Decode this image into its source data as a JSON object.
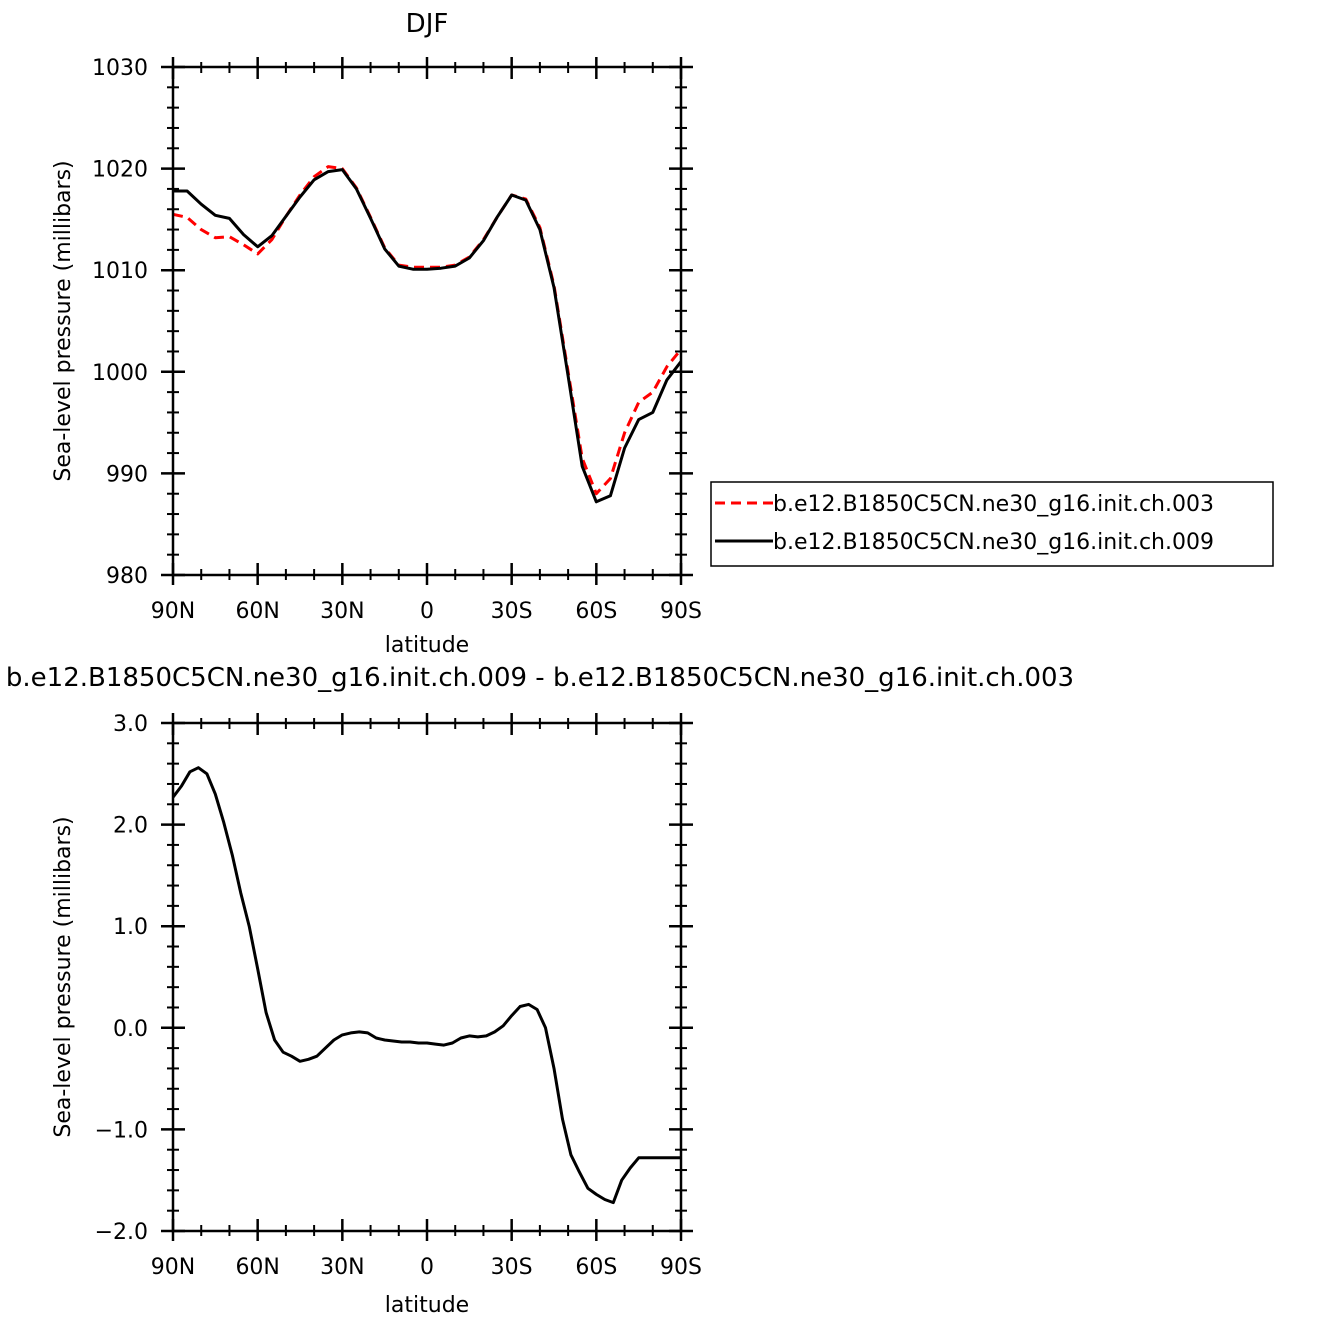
{
  "chart_data": [
    {
      "type": "line",
      "title": "DJF",
      "xlabel": "latitude",
      "ylabel": "Sea-level pressure (millibars)",
      "xlim": [
        90,
        -90
      ],
      "ylim": [
        980,
        1030
      ],
      "xticks": [
        {
          "value": 90,
          "label": "90N"
        },
        {
          "value": 60,
          "label": "60N"
        },
        {
          "value": 30,
          "label": "30N"
        },
        {
          "value": 0,
          "label": "0"
        },
        {
          "value": -30,
          "label": "30S"
        },
        {
          "value": -60,
          "label": "60S"
        },
        {
          "value": -90,
          "label": "90S"
        }
      ],
      "yticks": [
        {
          "value": 980,
          "label": "980"
        },
        {
          "value": 990,
          "label": "990"
        },
        {
          "value": 1000,
          "label": "1000"
        },
        {
          "value": 1010,
          "label": "1010"
        },
        {
          "value": 1020,
          "label": "1020"
        },
        {
          "value": 1030,
          "label": "1030"
        }
      ],
      "legend": "right",
      "series": [
        {
          "name": "b.e12.B1850C5CN.ne30_g16.init.ch.003",
          "color": "#ff0000",
          "dash": "dashed",
          "x": [
            90,
            85,
            80,
            75,
            70,
            65,
            60,
            55,
            50,
            45,
            40,
            35,
            30,
            25,
            20,
            15,
            10,
            5,
            0,
            -5,
            -10,
            -15,
            -20,
            -25,
            -30,
            -35,
            -40,
            -45,
            -50,
            -55,
            -60,
            -65,
            -70,
            -75,
            -80,
            -85,
            -90
          ],
          "y": [
            1015.5,
            1015.2,
            1014.0,
            1013.2,
            1013.3,
            1012.5,
            1011.6,
            1013.0,
            1015.3,
            1017.4,
            1019.2,
            1020.2,
            1020.0,
            1018.1,
            1015.2,
            1012.2,
            1010.5,
            1010.3,
            1010.3,
            1010.3,
            1010.5,
            1011.3,
            1013.0,
            1015.3,
            1017.4,
            1017.0,
            1014.2,
            1008.5,
            1000.0,
            991.5,
            988.0,
            989.5,
            994.0,
            997.0,
            998.0,
            1000.5,
            1002.2
          ]
        },
        {
          "name": "b.e12.B1850C5CN.ne30_g16.init.ch.009",
          "color": "#000000",
          "dash": "solid",
          "x": [
            90,
            85,
            80,
            75,
            70,
            65,
            60,
            55,
            50,
            45,
            40,
            35,
            30,
            25,
            20,
            15,
            10,
            5,
            0,
            -5,
            -10,
            -15,
            -20,
            -25,
            -30,
            -35,
            -40,
            -45,
            -50,
            -55,
            -60,
            -65,
            -70,
            -75,
            -80,
            -85,
            -90
          ],
          "y": [
            1017.8,
            1017.8,
            1016.5,
            1015.4,
            1015.1,
            1013.5,
            1012.3,
            1013.4,
            1015.3,
            1017.2,
            1018.9,
            1019.7,
            1019.9,
            1018.0,
            1015.1,
            1012.1,
            1010.4,
            1010.1,
            1010.1,
            1010.2,
            1010.4,
            1011.2,
            1012.9,
            1015.3,
            1017.4,
            1016.9,
            1014.0,
            1008.3,
            999.6,
            990.7,
            987.2,
            987.8,
            992.5,
            995.3,
            996.0,
            999.2,
            1001.0
          ]
        }
      ]
    },
    {
      "type": "line",
      "title": "b.e12.B1850C5CN.ne30_g16.init.ch.009 - b.e12.B1850C5CN.ne30_g16.init.ch.003",
      "xlabel": "latitude",
      "ylabel": "Sea-level pressure (millibars)",
      "xlim": [
        90,
        -90
      ],
      "ylim": [
        -2.0,
        3.0
      ],
      "xticks": [
        {
          "value": 90,
          "label": "90N"
        },
        {
          "value": 60,
          "label": "60N"
        },
        {
          "value": 30,
          "label": "30N"
        },
        {
          "value": 0,
          "label": "0"
        },
        {
          "value": -30,
          "label": "30S"
        },
        {
          "value": -60,
          "label": "60S"
        },
        {
          "value": -90,
          "label": "90S"
        }
      ],
      "yticks": [
        {
          "value": -2.0,
          "label": "−2.0"
        },
        {
          "value": -1.0,
          "label": "−1.0"
        },
        {
          "value": 0.0,
          "label": "0.0"
        },
        {
          "value": 1.0,
          "label": "1.0"
        },
        {
          "value": 2.0,
          "label": "2.0"
        },
        {
          "value": 3.0,
          "label": "3.0"
        }
      ],
      "series": [
        {
          "color": "#000000",
          "dash": "solid",
          "x": [
            90,
            87,
            84,
            81,
            78,
            75,
            72,
            69,
            66,
            63,
            60,
            57,
            54,
            51,
            48,
            45,
            42,
            39,
            36,
            33,
            30,
            27,
            24,
            21,
            18,
            15,
            12,
            9,
            6,
            3,
            0,
            -3,
            -6,
            -9,
            -12,
            -15,
            -18,
            -21,
            -24,
            -27,
            -30,
            -33,
            -36,
            -39,
            -42,
            -45,
            -48,
            -51,
            -54,
            -57,
            -60,
            -63,
            -66,
            -69,
            -72,
            -75,
            -78,
            -81,
            -84,
            -87,
            -90
          ],
          "y": [
            2.27,
            2.38,
            2.52,
            2.56,
            2.5,
            2.3,
            2.02,
            1.7,
            1.33,
            1.0,
            0.58,
            0.15,
            -0.12,
            -0.24,
            -0.28,
            -0.33,
            -0.31,
            -0.28,
            -0.2,
            -0.12,
            -0.07,
            -0.05,
            -0.04,
            -0.05,
            -0.1,
            -0.12,
            -0.13,
            -0.14,
            -0.14,
            -0.15,
            -0.15,
            -0.16,
            -0.17,
            -0.15,
            -0.1,
            -0.08,
            -0.09,
            -0.08,
            -0.04,
            0.02,
            0.12,
            0.21,
            0.23,
            0.18,
            0.0,
            -0.4,
            -0.9,
            -1.25,
            -1.42,
            -1.58,
            -1.64,
            -1.69,
            -1.72,
            -1.5,
            -1.38,
            -1.28,
            -1.28,
            -1.28,
            -1.28,
            -1.28,
            -1.28
          ]
        }
      ]
    }
  ],
  "legend": {
    "items": [
      {
        "label": "b.e12.B1850C5CN.ne30_g16.init.ch.003",
        "color": "#ff0000",
        "dash": "dashed"
      },
      {
        "label": "b.e12.B1850C5CN.ne30_g16.init.ch.009",
        "color": "#000000",
        "dash": "solid"
      }
    ]
  }
}
